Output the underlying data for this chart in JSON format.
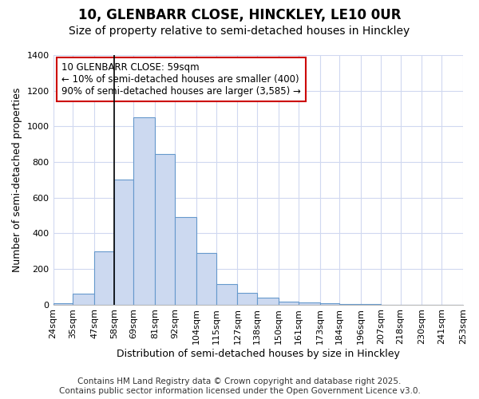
{
  "title_line1": "10, GLENBARR CLOSE, HINCKLEY, LE10 0UR",
  "title_line2": "Size of property relative to semi-detached houses in Hinckley",
  "xlabel": "Distribution of semi-detached houses by size in Hinckley",
  "ylabel": "Number of semi-detached properties",
  "footnote1": "Contains HM Land Registry data © Crown copyright and database right 2025.",
  "footnote2": "Contains public sector information licensed under the Open Government Licence v3.0.",
  "annotation_title": "10 GLENBARR CLOSE: 59sqm",
  "annotation_line2": "← 10% of semi-detached houses are smaller (400)",
  "annotation_line3": "90% of semi-detached houses are larger (3,585) →",
  "bar_values": [
    5,
    60,
    300,
    700,
    1050,
    845,
    490,
    290,
    115,
    65,
    40,
    18,
    10,
    5,
    2,
    2,
    0,
    0,
    0,
    0
  ],
  "bin_edges": [
    24,
    35,
    47,
    58,
    69,
    81,
    92,
    104,
    115,
    127,
    138,
    150,
    161,
    173,
    184,
    196,
    207,
    218,
    230,
    241,
    253
  ],
  "tick_labels": [
    "24sqm",
    "35sqm",
    "47sqm",
    "58sqm",
    "69sqm",
    "81sqm",
    "92sqm",
    "104sqm",
    "115sqm",
    "127sqm",
    "138sqm",
    "150sqm",
    "161sqm",
    "173sqm",
    "184sqm",
    "196sqm",
    "207sqm",
    "218sqm",
    "230sqm",
    "241sqm",
    "253sqm"
  ],
  "bar_color": "#ccd9f0",
  "bar_edge_color": "#6699cc",
  "property_line_x": 58,
  "ylim": [
    0,
    1400
  ],
  "yticks": [
    0,
    200,
    400,
    600,
    800,
    1000,
    1200,
    1400
  ],
  "background_color": "#ffffff",
  "grid_color": "#d0d8f0",
  "annotation_box_color": "#ffffff",
  "annotation_box_edge": "#cc0000",
  "title_fontsize": 12,
  "subtitle_fontsize": 10,
  "axis_label_fontsize": 9,
  "tick_fontsize": 8,
  "annotation_fontsize": 8.5,
  "footnote_fontsize": 7.5
}
